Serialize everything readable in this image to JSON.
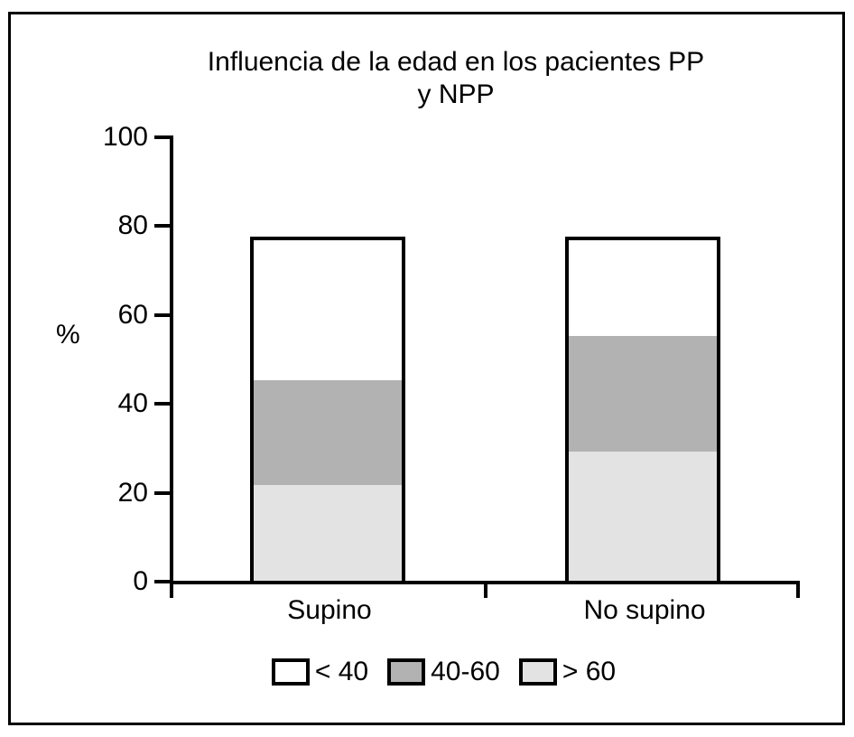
{
  "chart_data": {
    "type": "bar",
    "stacked": true,
    "title": "Influencia de la edad en los pacientes PP y NPP",
    "title_lines": [
      "Influencia de la edad en los pacientes PP",
      "y NPP"
    ],
    "ylabel": "%",
    "ylim": [
      0,
      100
    ],
    "y_ticks": [
      0,
      20,
      40,
      60,
      80,
      100
    ],
    "grid": false,
    "legend_position": "bottom",
    "categories": [
      "Supino",
      "No supino"
    ],
    "series": [
      {
        "name": "< 40",
        "color": "#ffffff",
        "values": [
          32.5,
          22.5
        ]
      },
      {
        "name": "40-60",
        "color": "#b2b2b2",
        "values": [
          23.5,
          26
        ]
      },
      {
        "name": "> 60",
        "color": "#e3e3e3",
        "values": [
          21.5,
          29
        ]
      }
    ],
    "stack_order_bottom_to_top": [
      "> 60",
      "40-60",
      "< 40"
    ],
    "bar_totals": [
      77.5,
      77.5
    ],
    "legend": [
      {
        "label": "< 40",
        "color": "#ffffff"
      },
      {
        "label": "40-60",
        "color": "#b2b2b2"
      },
      {
        "label": "> 60",
        "color": "#e3e3e3"
      }
    ],
    "colors": {
      "axis": "#000000",
      "background": "#ffffff",
      "frame_border": "#000000"
    }
  }
}
